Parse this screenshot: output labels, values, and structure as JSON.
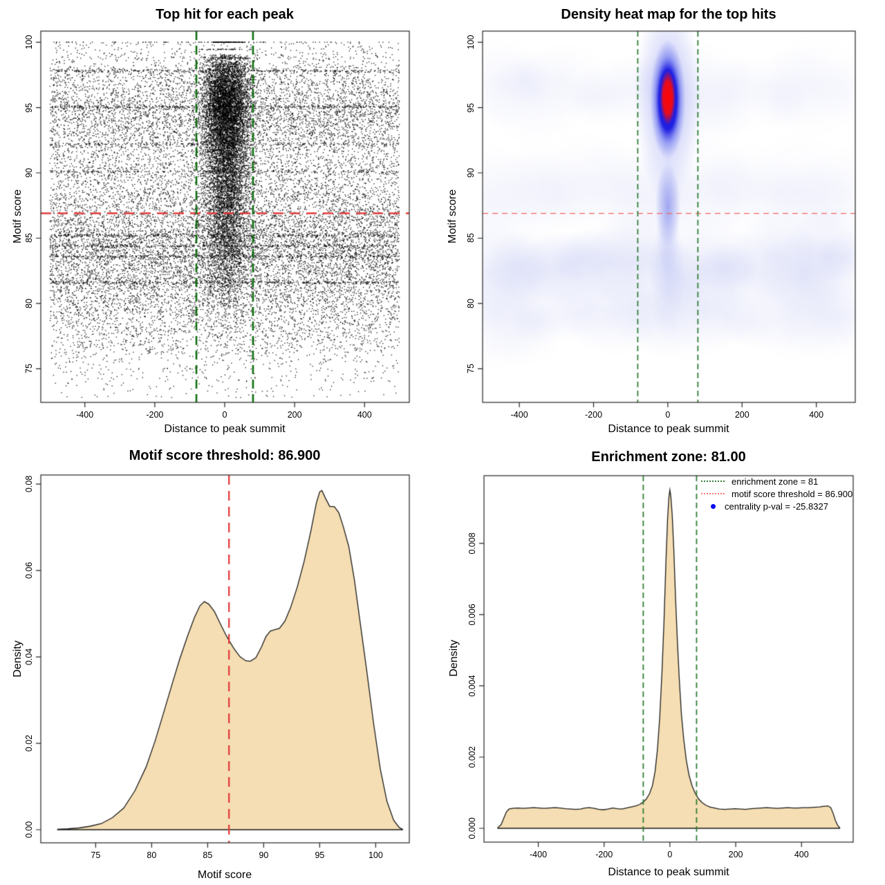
{
  "figure": {
    "background": "#ffffff"
  },
  "chart_data": [
    {
      "id": "top-hit-scatter",
      "type": "scatter",
      "title": "Top hit for each peak",
      "xlabel": "Distance to peak summit",
      "ylabel": "Motif score",
      "xlim": [
        -526,
        528
      ],
      "ylim": [
        72.43,
        100.85
      ],
      "xticks": {
        "values": [
          -400,
          -200,
          0,
          200,
          400
        ],
        "labels": [
          "-400",
          "-200",
          "0",
          "200",
          "400"
        ]
      },
      "yticks": {
        "values": [
          75,
          80,
          85,
          90,
          95,
          100
        ],
        "labels": [
          "75",
          "80",
          "85",
          "90",
          "95",
          "100"
        ]
      },
      "point_color": "#000000",
      "ref_lines": {
        "hline": {
          "value": 86.9,
          "color": "#e23b3b",
          "dash": [
            15,
            9
          ],
          "width": 2.5
        },
        "vlines": {
          "values": [
            -81,
            81
          ],
          "color": "#0f6e0f",
          "dash": [
            13,
            8
          ],
          "width": 2.6
        }
      },
      "points_recipe": {
        "seed": 20240915,
        "n_background": 17000,
        "background": {
          "x_uniform": [
            -500,
            500
          ],
          "y_mixture": [
            {
              "mean": 84.2,
              "sd": 2.9,
              "w": 0.38
            },
            {
              "mean": 95.0,
              "sd": 2.4,
              "w": 0.3
            },
            {
              "mean": 89.5,
              "sd": 2.8,
              "w": 0.14
            },
            {
              "mean": 79.5,
              "sd": 2.9,
              "w": 0.18
            }
          ]
        },
        "n_central": 10500,
        "central": {
          "x_normal": {
            "mean": 5,
            "sd": 33,
            "max_abs_dev": 115
          },
          "y_mixture": [
            {
              "mean": 95.4,
              "sd": 2.2,
              "w": 0.5
            },
            {
              "mean": 91.5,
              "sd": 2.6,
              "w": 0.22
            },
            {
              "mean": 88.0,
              "sd": 3.0,
              "w": 0.16
            },
            {
              "mean": 84.5,
              "sd": 3.0,
              "w": 0.12
            }
          ],
          "top_rows": {
            "threshold": 99.05,
            "values": [
              100,
              99.45,
              98.8,
              98.15
            ],
            "probs": [
              0.45,
              0.23,
              0.2,
              0.12
            ]
          }
        },
        "stripes": [
          {
            "y": 97.8,
            "n": 330
          },
          {
            "y": 95.05,
            "n": 330
          },
          {
            "y": 85.2,
            "n": 330
          },
          {
            "y": 84.4,
            "n": 330
          },
          {
            "y": 83.6,
            "n": 330
          },
          {
            "y": 81.6,
            "n": 330
          },
          {
            "y": 92.2,
            "n": 200
          },
          {
            "y": 90.1,
            "n": 200
          }
        ],
        "top_row_full_width": {
          "y": 100,
          "n": 80
        }
      }
    },
    {
      "id": "density-heatmap",
      "type": "heatmap",
      "title": "Density heat map for the top hits",
      "xlabel": "Distance to peak summit",
      "ylabel": "Motif score",
      "xlim": [
        -499,
        505
      ],
      "ylim": [
        72.43,
        100.85
      ],
      "xticks": {
        "values": [
          -400,
          -200,
          0,
          200,
          400
        ],
        "labels": [
          "-400",
          "-200",
          "0",
          "200",
          "400"
        ]
      },
      "yticks": {
        "values": [
          75,
          80,
          85,
          90,
          95,
          100
        ],
        "labels": [
          "75",
          "80",
          "85",
          "90",
          "95",
          "100"
        ]
      },
      "colormap": [
        "#ffffff",
        "#aab4ec",
        "#1414e0",
        "#ff0000"
      ],
      "hotspot": {
        "x": 0,
        "y": 95.6,
        "halfwidth": 48,
        "halfheight": 4.6,
        "core_halfwidth": 21,
        "core_halfheight": 2.1,
        "tail": {
          "x": 0,
          "y": 87.5,
          "halfwidth": 34,
          "halfheight": 3.2
        }
      },
      "background_bands": [
        {
          "y_center": 83.0,
          "alpha": 0.12
        },
        {
          "y_center": 79.0,
          "alpha": 0.07
        },
        {
          "y_center": 88.5,
          "alpha": 0.05
        },
        {
          "y_center": 96.5,
          "alpha": 0.055
        }
      ],
      "haze_color_rgb": [
        123,
        136,
        229
      ],
      "ref_lines": {
        "hline": {
          "value": 86.9,
          "color": "#f56262",
          "dash": [
            8,
            6
          ],
          "width": 1.4
        },
        "vlines": {
          "values": [
            -81,
            81
          ],
          "color": "#2e7d32",
          "dash": [
            8,
            5
          ],
          "width": 1.8
        }
      }
    },
    {
      "id": "motif-score-density",
      "type": "area",
      "title": "Motif score threshold: 86.900",
      "xlabel": "Motif score",
      "ylabel": "Density",
      "xlim": [
        70.1,
        103.0
      ],
      "ylim": [
        -0.00304,
        0.0821
      ],
      "xticks": {
        "values": [
          75,
          80,
          85,
          90,
          95,
          100
        ],
        "labels": [
          "75",
          "80",
          "85",
          "90",
          "95",
          "100"
        ]
      },
      "yticks": {
        "values": [
          0,
          0.02,
          0.04,
          0.06,
          0.08
        ],
        "labels": [
          "0.00",
          "0.02",
          "0.04",
          "0.06",
          "0.08"
        ]
      },
      "fill_color": "#f5deb3",
      "line_color": "#1a1a1a",
      "ref_lines": {
        "vlines": {
          "values": [
            86.9
          ],
          "color": "#e23b3b",
          "dash": [
            14,
            9
          ],
          "width": 2.3
        }
      },
      "curve": [
        [
          71.6,
          0.0001
        ],
        [
          72.5,
          0.0002
        ],
        [
          73.5,
          0.0004
        ],
        [
          74.5,
          0.0008
        ],
        [
          75.5,
          0.0014
        ],
        [
          76.5,
          0.0028
        ],
        [
          77.5,
          0.005
        ],
        [
          78.5,
          0.009
        ],
        [
          79.5,
          0.0145
        ],
        [
          80.3,
          0.0205
        ],
        [
          81.0,
          0.0265
        ],
        [
          81.8,
          0.0335
        ],
        [
          82.5,
          0.0395
        ],
        [
          83.2,
          0.0448
        ],
        [
          83.8,
          0.049
        ],
        [
          84.3,
          0.0518
        ],
        [
          84.7,
          0.0528
        ],
        [
          85.1,
          0.0522
        ],
        [
          85.6,
          0.0505
        ],
        [
          86.1,
          0.0478
        ],
        [
          86.6,
          0.0452
        ],
        [
          86.9,
          0.0438
        ],
        [
          87.4,
          0.0417
        ],
        [
          87.9,
          0.04
        ],
        [
          88.4,
          0.0391
        ],
        [
          88.8,
          0.039
        ],
        [
          89.3,
          0.0398
        ],
        [
          89.8,
          0.0423
        ],
        [
          90.2,
          0.0447
        ],
        [
          90.6,
          0.046
        ],
        [
          91.0,
          0.0463
        ],
        [
          91.4,
          0.0466
        ],
        [
          91.9,
          0.0483
        ],
        [
          92.4,
          0.0514
        ],
        [
          93.0,
          0.0562
        ],
        [
          93.6,
          0.062
        ],
        [
          94.2,
          0.069
        ],
        [
          94.7,
          0.0756
        ],
        [
          95.0,
          0.0782
        ],
        [
          95.2,
          0.0785
        ],
        [
          95.5,
          0.0768
        ],
        [
          95.9,
          0.0748
        ],
        [
          96.3,
          0.0748
        ],
        [
          96.7,
          0.0734
        ],
        [
          97.1,
          0.0702
        ],
        [
          97.6,
          0.0655
        ],
        [
          98.1,
          0.0578
        ],
        [
          98.6,
          0.0482
        ],
        [
          99.2,
          0.0368
        ],
        [
          99.8,
          0.0248
        ],
        [
          100.4,
          0.0142
        ],
        [
          101.0,
          0.0066
        ],
        [
          101.6,
          0.0022
        ],
        [
          102.1,
          0.0005
        ],
        [
          102.4,
          0.0001
        ]
      ]
    },
    {
      "id": "summit-distance-density",
      "type": "area",
      "title": "Enrichment zone: 81.00",
      "xlabel": "Distance to peak summit",
      "ylabel": "Density",
      "xlim": [
        -565,
        557
      ],
      "ylim": [
        -0.000388,
        0.0099
      ],
      "xticks": {
        "values": [
          -400,
          -200,
          0,
          200,
          400
        ],
        "labels": [
          "-400",
          "-200",
          "0",
          "200",
          "400"
        ]
      },
      "yticks": {
        "values": [
          0,
          0.002,
          0.004,
          0.006,
          0.008
        ],
        "labels": [
          "0.000",
          "0.002",
          "0.004",
          "0.006",
          "0.008"
        ]
      },
      "fill_color": "#f5deb3",
      "line_color": "#1a1a1a",
      "ref_lines": {
        "vlines": {
          "values": [
            -81,
            81
          ],
          "color": "#2e7d32",
          "dash": [
            8,
            5
          ],
          "width": 1.8
        }
      },
      "legend": [
        {
          "swatch": "dotted-line",
          "color": "#2e7d32",
          "label": "enrichment zone = 81"
        },
        {
          "swatch": "dotted-line",
          "color": "#ff7373",
          "label": "motif score threshold = 86.900"
        },
        {
          "swatch": "dot",
          "color": "#0008ee",
          "label": "centrality p-val = -25.8327"
        }
      ],
      "curve": [
        [
          -523,
          2e-05
        ],
        [
          -513,
          0.0001
        ],
        [
          -505,
          0.00028
        ],
        [
          -497,
          0.00046
        ],
        [
          -489,
          0.00054
        ],
        [
          -478,
          0.00056
        ],
        [
          -462,
          0.00057
        ],
        [
          -446,
          0.00056
        ],
        [
          -430,
          0.00057
        ],
        [
          -414,
          0.00058
        ],
        [
          -398,
          0.00057
        ],
        [
          -382,
          0.00056
        ],
        [
          -366,
          0.00057
        ],
        [
          -350,
          0.00058
        ],
        [
          -334,
          0.00057
        ],
        [
          -318,
          0.00055
        ],
        [
          -302,
          0.00054
        ],
        [
          -286,
          0.00053
        ],
        [
          -272,
          0.00054
        ],
        [
          -258,
          0.00057
        ],
        [
          -244,
          0.00058
        ],
        [
          -230,
          0.00056
        ],
        [
          -216,
          0.00053
        ],
        [
          -202,
          0.00052
        ],
        [
          -188,
          0.00054
        ],
        [
          -174,
          0.00057
        ],
        [
          -160,
          0.00055
        ],
        [
          -146,
          0.00054
        ],
        [
          -132,
          0.00057
        ],
        [
          -118,
          0.0006
        ],
        [
          -104,
          0.00063
        ],
        [
          -92,
          0.00067
        ],
        [
          -82,
          0.00073
        ],
        [
          -72,
          0.00082
        ],
        [
          -62,
          0.00097
        ],
        [
          -53,
          0.0012
        ],
        [
          -45,
          0.0016
        ],
        [
          -38,
          0.0022
        ],
        [
          -31,
          0.0031
        ],
        [
          -24,
          0.0044
        ],
        [
          -18,
          0.0058
        ],
        [
          -12,
          0.0075
        ],
        [
          -7,
          0.0087
        ],
        [
          -3,
          0.0093
        ],
        [
          0,
          0.0095
        ],
        [
          3,
          0.0093
        ],
        [
          7,
          0.0088
        ],
        [
          12,
          0.0078
        ],
        [
          17,
          0.0065
        ],
        [
          23,
          0.0052
        ],
        [
          29,
          0.0041
        ],
        [
          35,
          0.0032
        ],
        [
          42,
          0.0025
        ],
        [
          50,
          0.0019
        ],
        [
          58,
          0.0015
        ],
        [
          67,
          0.0012
        ],
        [
          77,
          0.00098
        ],
        [
          87,
          0.00083
        ],
        [
          97,
          0.00073
        ],
        [
          109,
          0.00065
        ],
        [
          121,
          0.0006
        ],
        [
          135,
          0.00057
        ],
        [
          150,
          0.00054
        ],
        [
          166,
          0.00053
        ],
        [
          182,
          0.00054
        ],
        [
          198,
          0.00055
        ],
        [
          214,
          0.00054
        ],
        [
          230,
          0.00053
        ],
        [
          246,
          0.00055
        ],
        [
          262,
          0.00056
        ],
        [
          278,
          0.00057
        ],
        [
          294,
          0.00058
        ],
        [
          310,
          0.00057
        ],
        [
          326,
          0.00056
        ],
        [
          342,
          0.00057
        ],
        [
          358,
          0.00058
        ],
        [
          374,
          0.00057
        ],
        [
          390,
          0.00057
        ],
        [
          406,
          0.00058
        ],
        [
          422,
          0.00058
        ],
        [
          438,
          0.00059
        ],
        [
          454,
          0.0006
        ],
        [
          468,
          0.00062
        ],
        [
          480,
          0.00063
        ],
        [
          489,
          0.00058
        ],
        [
          496,
          0.00042
        ],
        [
          503,
          0.00022
        ],
        [
          510,
          8e-05
        ],
        [
          516,
          2e-05
        ]
      ]
    }
  ]
}
